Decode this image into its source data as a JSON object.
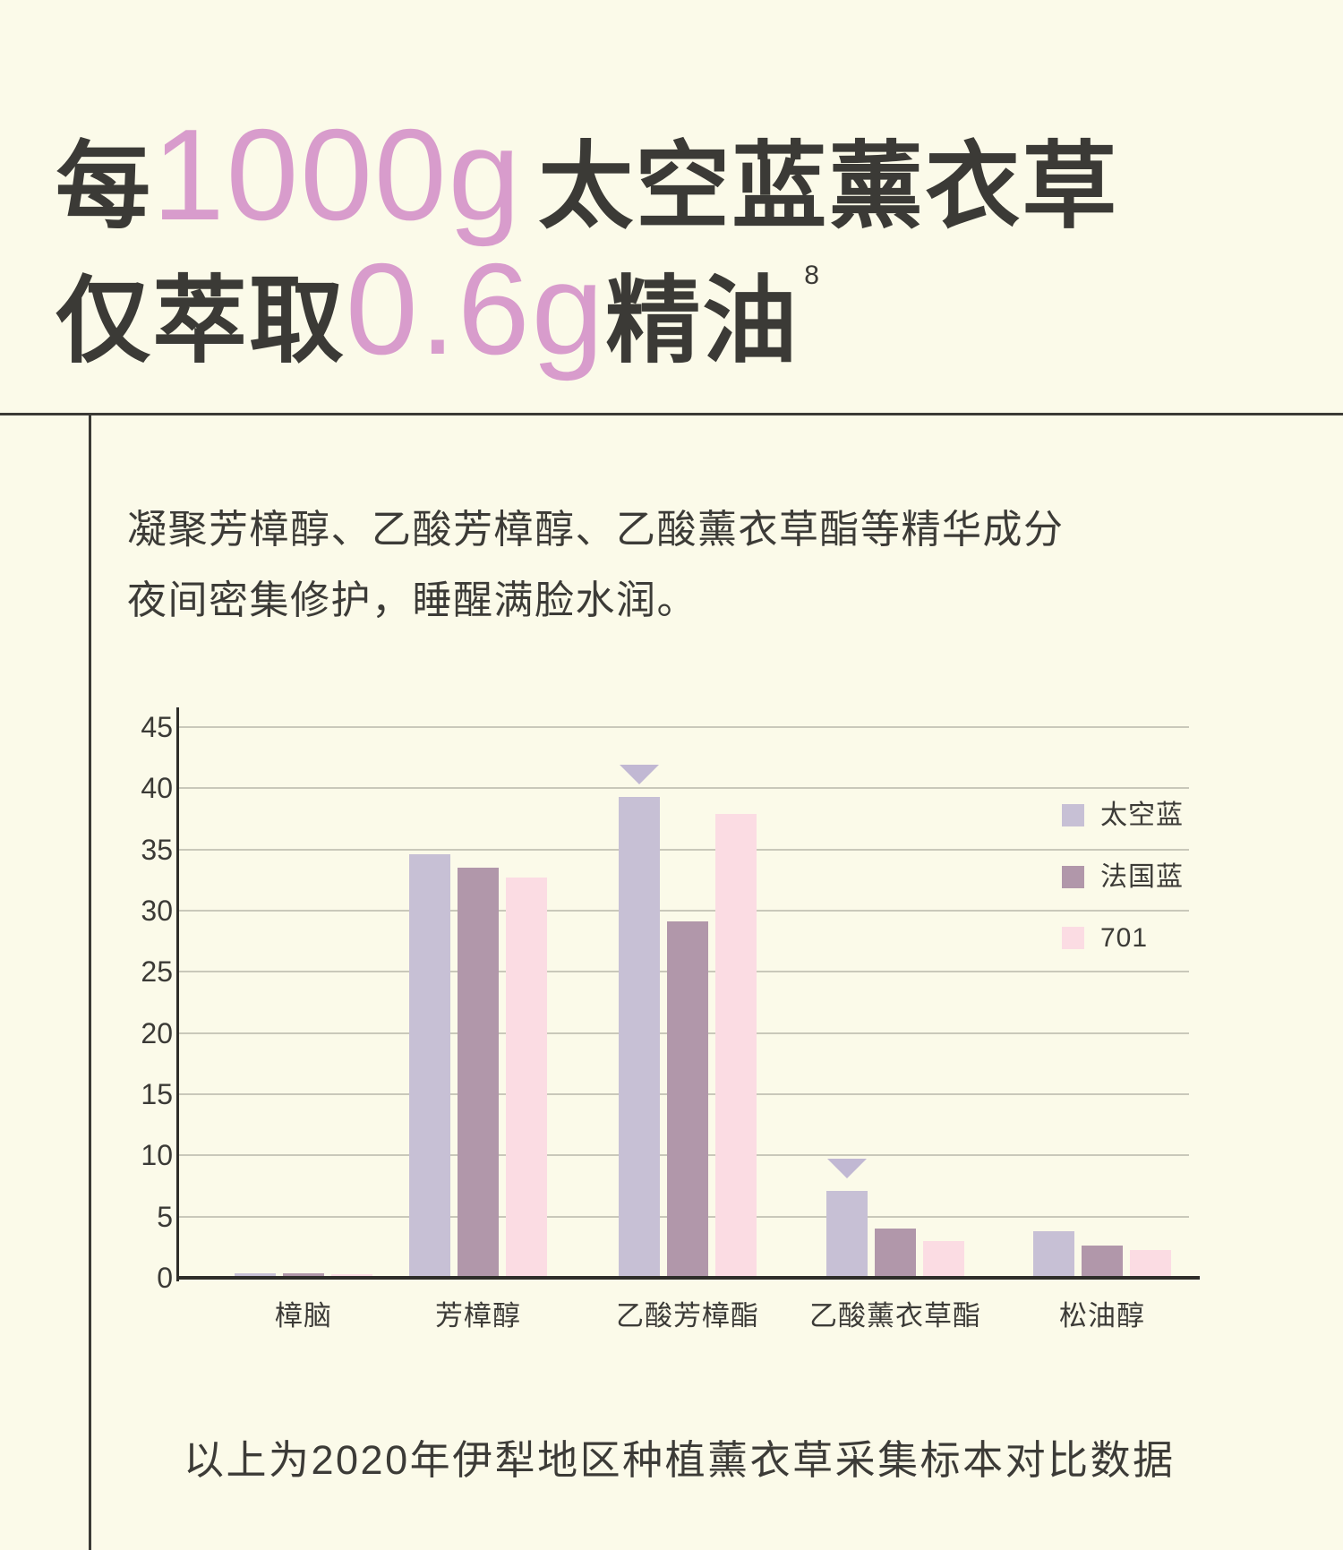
{
  "page": {
    "background": "#FBFAE9",
    "text_dark": "#3B3A36",
    "accent_pink": "#D89CCC"
  },
  "heading": {
    "line1_prefix": "每",
    "line1_accent": "1000g",
    "line1_suffix": "太空蓝薰衣草",
    "line2_prefix": "仅萃取",
    "line2_accent": "0.6g",
    "line2_suffix": "精油",
    "line2_superscript": "8"
  },
  "description": {
    "line1": "凝聚芳樟醇、乙酸芳樟醇、乙酸薰衣草酯等精华成分",
    "line2": "夜间密集修护，睡醒满脸水润。"
  },
  "chart_data": {
    "type": "bar",
    "title": "",
    "categories": [
      "樟脑",
      "芳樟醇",
      "乙酸芳樟酯",
      "乙酸薰衣草酯",
      "松油醇"
    ],
    "series": [
      {
        "name": "太空蓝",
        "color": "#C7C0D5",
        "values": [
          0.4,
          34.6,
          39.3,
          7.1,
          3.8
        ]
      },
      {
        "name": "法国蓝",
        "color": "#B197AA",
        "values": [
          0.4,
          33.5,
          29.1,
          4.0,
          2.6
        ]
      },
      {
        "name": "701",
        "color": "#FBDCE3",
        "values": [
          0.3,
          32.7,
          37.9,
          3.0,
          2.3
        ]
      }
    ],
    "marker_series_index": 0,
    "marker_category_indexes": [
      2,
      3
    ],
    "marker_color": "#C1B8D3",
    "xlabel": "",
    "ylabel": "",
    "ylim": [
      0,
      45
    ],
    "ytick_step": 5,
    "grid": true,
    "gridline_color": "#C9C8BA",
    "legend_position": "inside-top-right",
    "legend_entries": [
      "太空蓝",
      "法国蓝",
      "701"
    ]
  },
  "caption": {
    "text": "以上为2020年伊犁地区种植薰衣草采集标本对比数据"
  }
}
